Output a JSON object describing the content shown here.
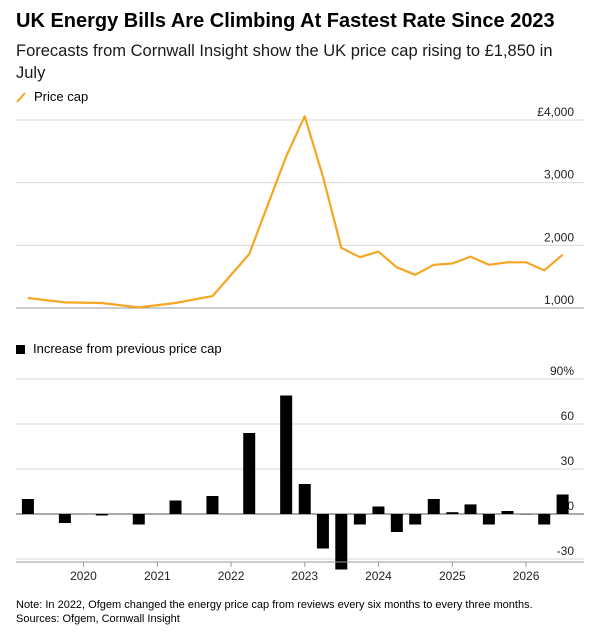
{
  "title": "UK Energy Bills Are Climbing At Fastest Rate Since 2023",
  "subtitle": "Forecasts from Cornwall Insight show the UK price cap rising to £1,850 in July",
  "footer": {
    "note": "Note: In 2022, Ofgem changed the energy price cap from reviews every six months to every three months.",
    "sources": "Sources: Ofgem, Cornwall Insight"
  },
  "colors": {
    "line": "#f5a623",
    "bar": "#000000",
    "grid": "#d9d9d9",
    "axis": "#999999"
  },
  "chart_data": [
    {
      "type": "line",
      "title": "",
      "series": [
        {
          "name": "Price cap",
          "x": [
            "2019-04-01",
            "2019-10-01",
            "2020-04-01",
            "2020-10-01",
            "2021-04-01",
            "2021-10-01",
            "2022-04-01",
            "2022-10-01",
            "2023-01-01",
            "2023-04-01",
            "2023-07-01",
            "2023-10-01",
            "2024-01-01",
            "2024-04-01",
            "2024-07-01",
            "2024-10-01",
            "2025-01-01",
            "2025-04-01",
            "2025-07-01",
            "2025-10-01",
            "2026-01-01",
            "2026-04-01",
            "2026-07-01"
          ],
          "values": [
            1160,
            1090,
            1080,
            1010,
            1080,
            1190,
            1860,
            3420,
            4060,
            3100,
            1960,
            1810,
            1900,
            1650,
            1530,
            1690,
            1710,
            1820,
            1690,
            1730,
            1730,
            1600,
            1850
          ]
        }
      ],
      "ylim": [
        1000,
        4300
      ],
      "yticks": [
        1000,
        2000,
        3000,
        4000
      ],
      "ytick_labels": [
        "1,000",
        "2,000",
        "3,000",
        "£4,000"
      ],
      "grid": true
    },
    {
      "type": "bar",
      "title": "",
      "series": [
        {
          "name": "Increase from previous price cap",
          "x": [
            "2019-04-01",
            "2019-10-01",
            "2020-04-01",
            "2020-10-01",
            "2021-04-01",
            "2021-10-01",
            "2022-04-01",
            "2022-10-01",
            "2023-01-01",
            "2023-04-01",
            "2023-07-01",
            "2023-10-01",
            "2024-01-01",
            "2024-04-01",
            "2024-07-01",
            "2024-10-01",
            "2025-01-01",
            "2025-04-01",
            "2025-07-01",
            "2025-10-01",
            "2026-01-01",
            "2026-04-01",
            "2026-07-01"
          ],
          "values": [
            10,
            -6,
            -1,
            -7,
            9,
            12,
            54,
            79,
            20,
            -23,
            -37,
            -7,
            5,
            -12,
            -7,
            10,
            1.2,
            6.4,
            -7,
            2,
            0,
            -7,
            13
          ]
        }
      ],
      "ylim": [
        -37,
        95
      ],
      "yticks": [
        -30,
        0,
        30,
        60,
        90
      ],
      "ytick_labels": [
        "-30",
        "0",
        "30",
        "60",
        "90%"
      ],
      "xtick_labels": [
        "2020",
        "2021",
        "2022",
        "2023",
        "2024",
        "2025",
        "2026"
      ],
      "grid": true
    }
  ]
}
